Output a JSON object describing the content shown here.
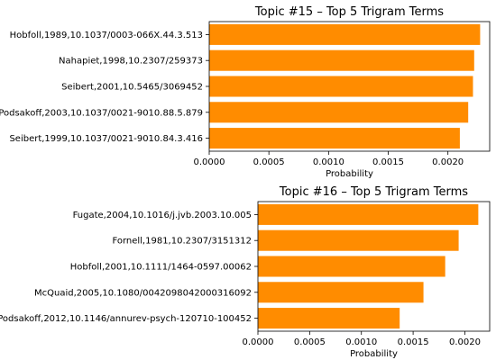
{
  "chart_data": [
    {
      "type": "bar",
      "orientation": "horizontal",
      "title": "Topic #15 – Top 5 Trigram Terms",
      "xlabel": "Probability",
      "ylabel": "",
      "categories": [
        "Hobfoll,1989,10.1037/0003-066X.44.3.513",
        "Nahapiet,1998,10.2307/259373",
        "Seibert,2001,10.5465/3069452",
        "Podsakoff,2003,10.1037/0021-9010.88.5.879",
        "Seibert,1999,10.1037/0021-9010.84.3.416"
      ],
      "values": [
        0.00227,
        0.00222,
        0.00221,
        0.00217,
        0.0021
      ],
      "xlim": [
        0,
        0.00235
      ],
      "xticks": [
        0,
        0.0005,
        0.001,
        0.0015,
        0.002
      ],
      "xtick_labels": [
        "0.0000",
        "0.0005",
        "0.0010",
        "0.0015",
        "0.0020"
      ],
      "bar_color": "#ff8c00",
      "grid": false
    },
    {
      "type": "bar",
      "orientation": "horizontal",
      "title": "Topic #16 – Top 5 Trigram Terms",
      "xlabel": "Probability",
      "ylabel": "",
      "categories": [
        "Fugate,2004,10.1016/j.jvb.2003.10.005",
        "Fornell,1981,10.2307/3151312",
        "Hobfoll,2001,10.1111/1464-0597.00062",
        "McQuaid,2005,10.1080/0042098042000316092",
        "Podsakoff,2012,10.1146/annurev-psych-120710-100452"
      ],
      "values": [
        0.00213,
        0.00194,
        0.00181,
        0.0016,
        0.00137
      ],
      "xlim": [
        0,
        0.00224
      ],
      "xticks": [
        0,
        0.0005,
        0.001,
        0.0015,
        0.002
      ],
      "xtick_labels": [
        "0.0000",
        "0.0005",
        "0.0010",
        "0.0015",
        "0.0020"
      ],
      "bar_color": "#ff8c00",
      "grid": false
    }
  ]
}
